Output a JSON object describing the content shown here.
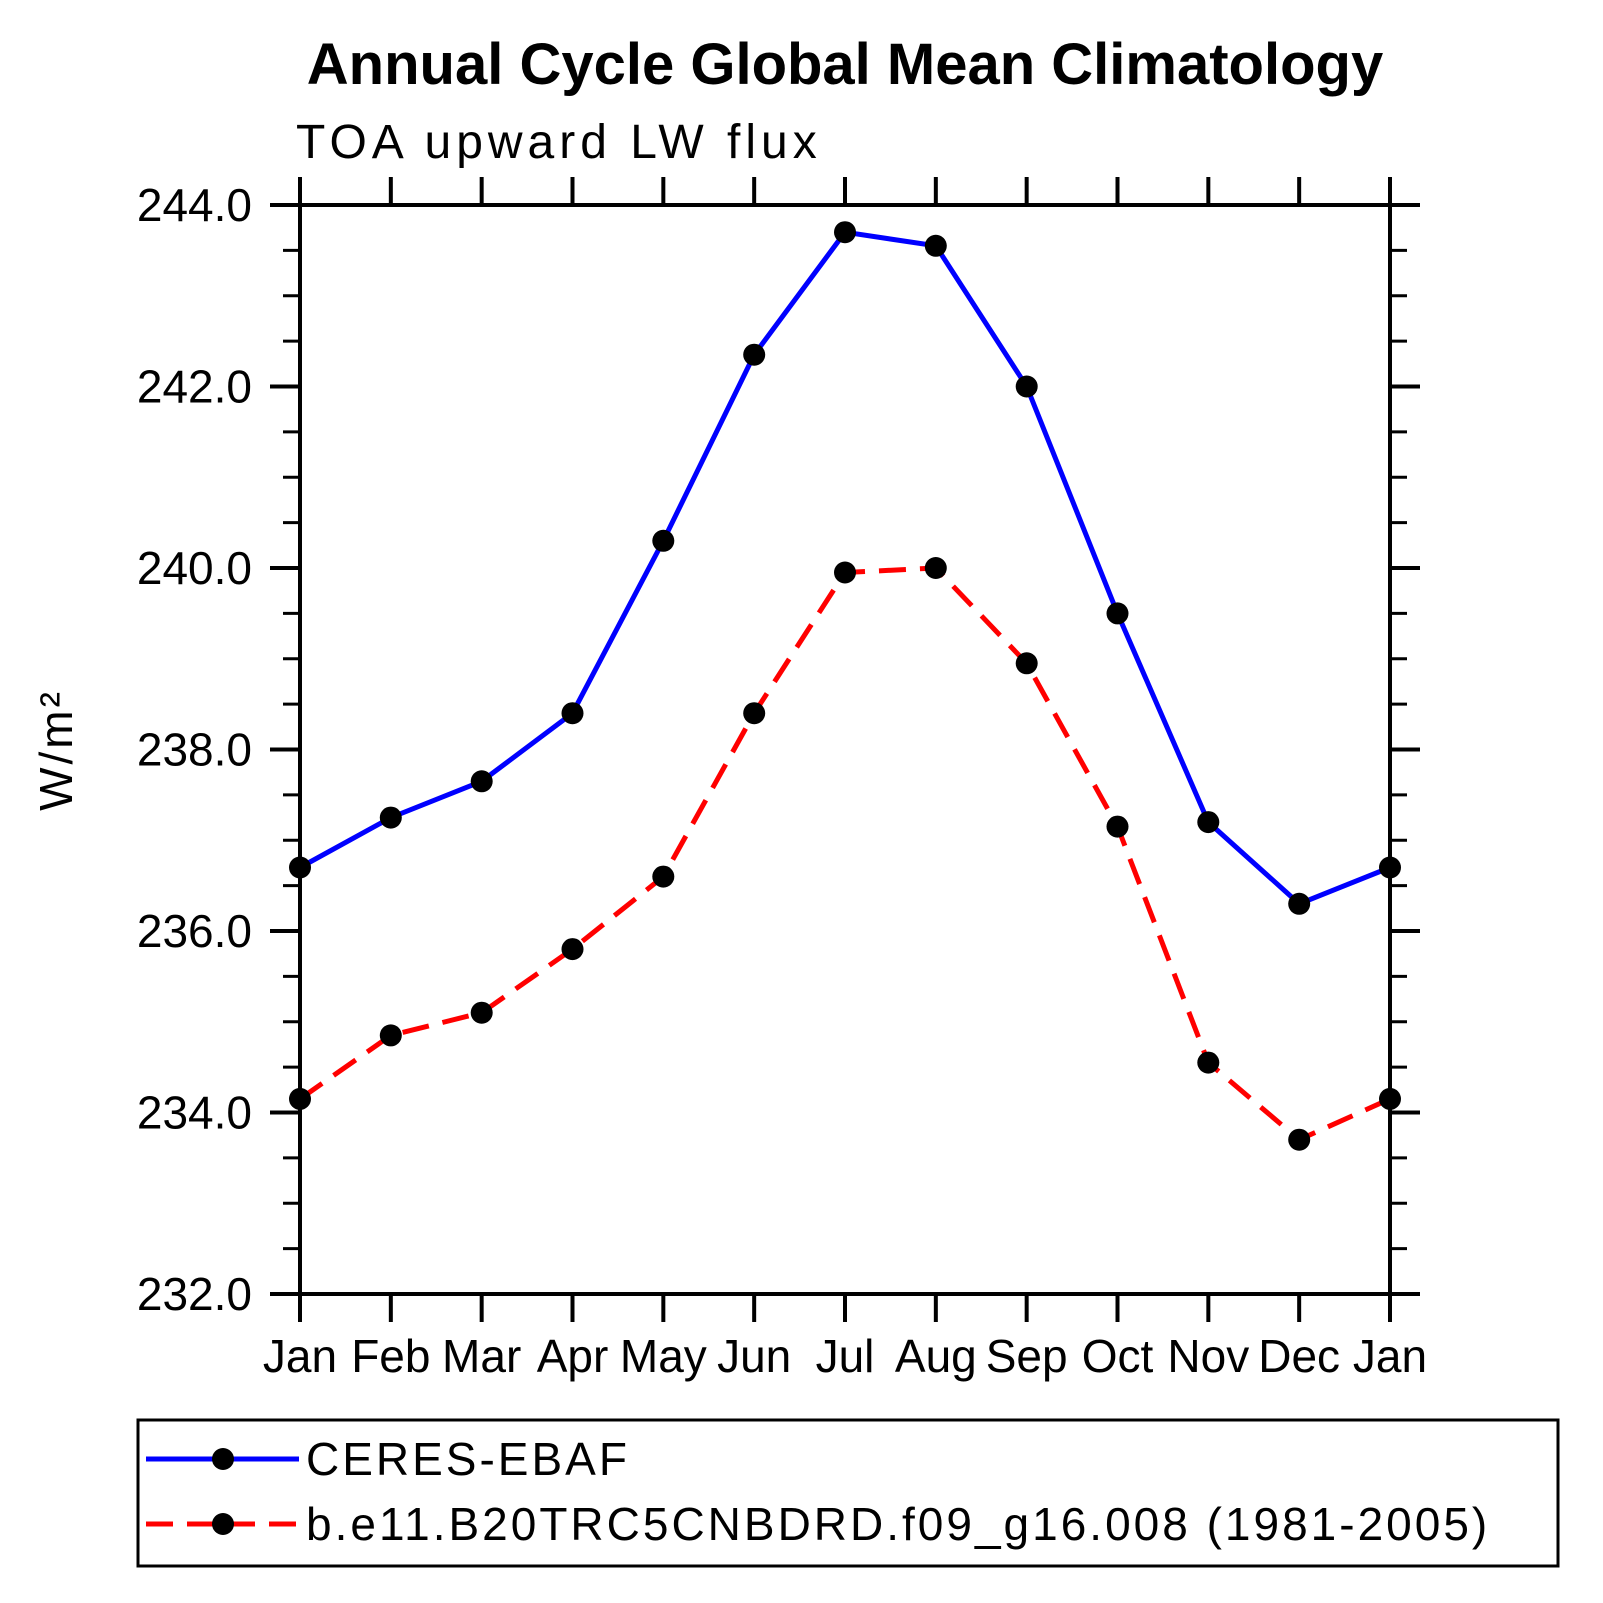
{
  "title": "Annual Cycle Global Mean Climatology",
  "subtitle": "TOA upward LW flux",
  "ylabel": "W/m²",
  "chart_data": {
    "type": "line",
    "x_categories": [
      "Jan",
      "Feb",
      "Mar",
      "Apr",
      "May",
      "Jun",
      "Jul",
      "Aug",
      "Sep",
      "Oct",
      "Nov",
      "Dec",
      "Jan"
    ],
    "ylim": [
      232.0,
      244.0
    ],
    "ytick_major_step": 2.0,
    "ytick_minor_step": 0.5,
    "ytick_labels": [
      "232.0",
      "234.0",
      "236.0",
      "238.0",
      "240.0",
      "242.0",
      "244.0"
    ],
    "grid": false,
    "legend_position": "bottom",
    "axis_color": "#000000",
    "series": [
      {
        "name": "CERES-EBAF",
        "color": "#0000ff",
        "style": "solid",
        "marker": "circle",
        "marker_color": "#000000",
        "values": [
          236.7,
          237.25,
          237.65,
          238.4,
          240.3,
          242.35,
          243.7,
          243.55,
          242.0,
          239.5,
          237.2,
          236.3,
          236.7
        ]
      },
      {
        "name": "b.e11.B20TRC5CNBDRD.f09_g16.008 (1981-2005)",
        "color": "#ff0000",
        "style": "dashed",
        "marker": "circle",
        "marker_color": "#000000",
        "values": [
          234.15,
          234.85,
          235.1,
          235.8,
          236.6,
          238.4,
          239.95,
          240.0,
          238.95,
          237.15,
          234.55,
          233.7,
          234.15
        ]
      }
    ]
  }
}
